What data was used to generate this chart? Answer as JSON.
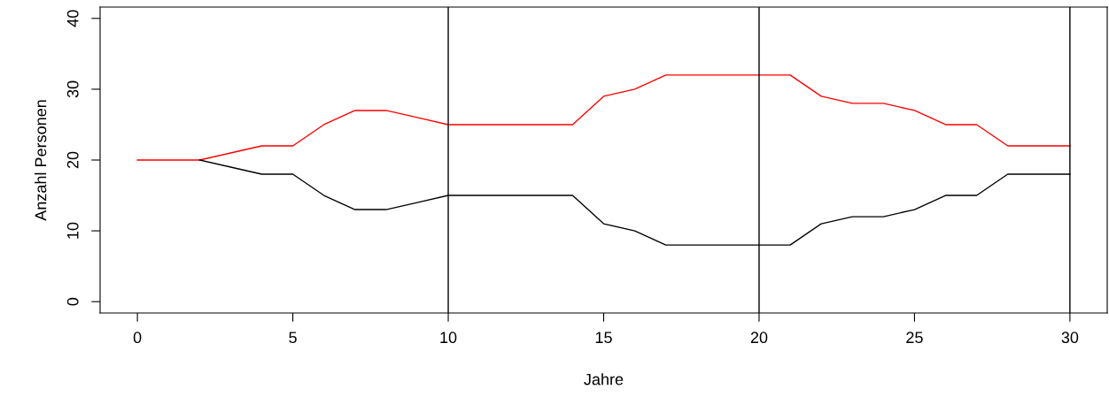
{
  "chart_data": {
    "type": "line",
    "xlabel": "Jahre",
    "ylabel": "Anzahl Personen",
    "x": [
      0,
      1,
      2,
      3,
      4,
      5,
      6,
      7,
      8,
      9,
      10,
      11,
      12,
      13,
      14,
      15,
      16,
      17,
      18,
      19,
      20,
      21,
      22,
      23,
      24,
      25,
      26,
      27,
      28,
      29,
      30
    ],
    "series": [
      {
        "color": "#ff0000",
        "values": [
          20,
          20,
          20,
          21,
          22,
          22,
          25,
          27,
          27,
          26,
          25,
          25,
          25,
          25,
          25,
          29,
          30,
          32,
          32,
          32,
          32,
          32,
          29,
          28,
          28,
          27,
          25,
          25,
          22,
          22,
          22
        ]
      },
      {
        "color": "#000000",
        "values": [
          null,
          null,
          20,
          19,
          18,
          18,
          15,
          13,
          13,
          14,
          15,
          15,
          15,
          15,
          15,
          11,
          10,
          8,
          8,
          8,
          8,
          8,
          11,
          12,
          12,
          13,
          15,
          15,
          18,
          18,
          18
        ]
      }
    ],
    "xlim": [
      -1.2,
      31.2
    ],
    "ylim": [
      -1.6,
      41.6
    ],
    "xticks": [
      0,
      5,
      10,
      15,
      20,
      25,
      30
    ],
    "yticks": [
      0,
      10,
      20,
      30,
      40
    ],
    "ref_lines": [
      {
        "axis": "x",
        "value": 10,
        "color": "#000000"
      },
      {
        "axis": "x",
        "value": 20,
        "color": "#000000"
      },
      {
        "axis": "x",
        "value": 30,
        "color": "#000000"
      }
    ],
    "grid": false,
    "legend": false,
    "marker": "none",
    "line_style": "solid"
  }
}
